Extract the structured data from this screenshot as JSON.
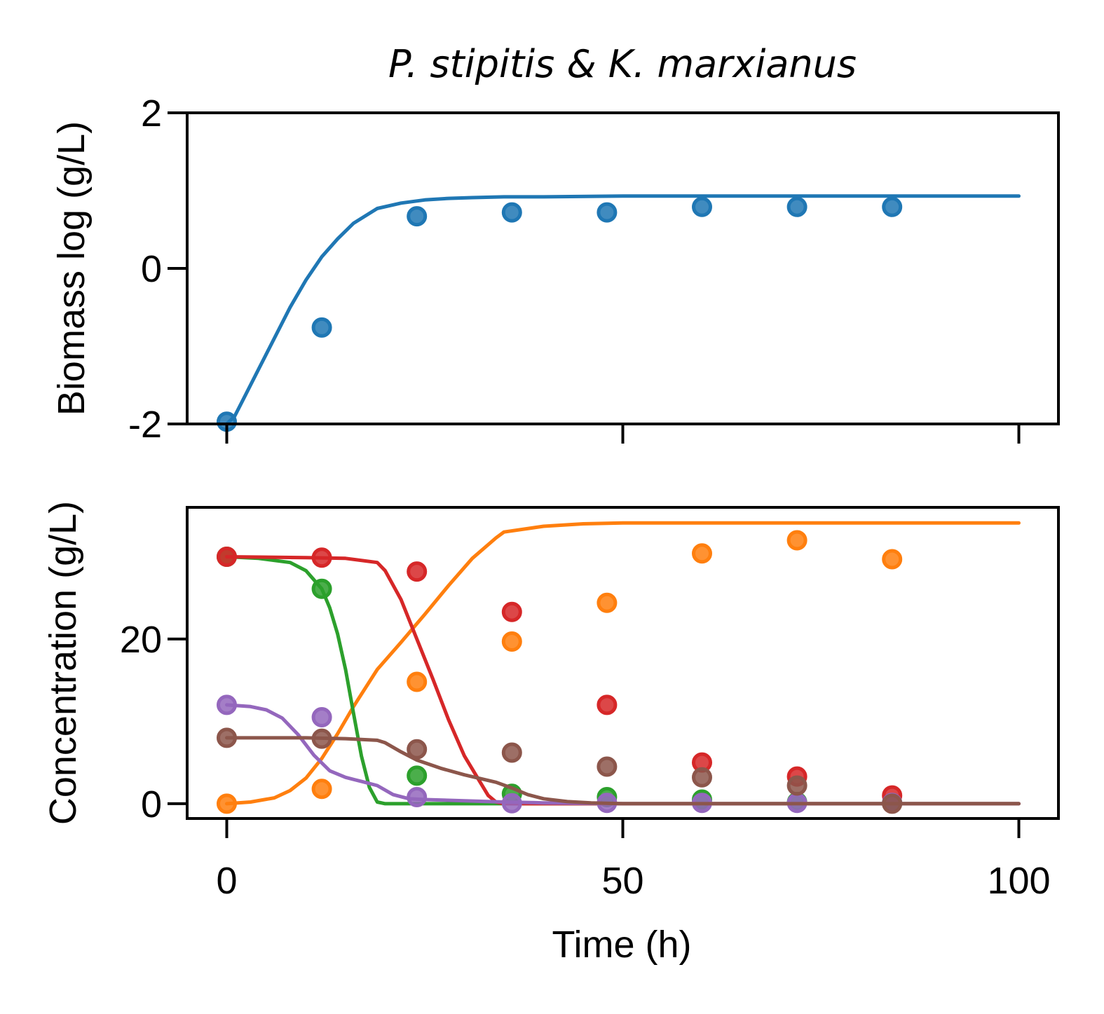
{
  "chart_data": [
    {
      "type": "line",
      "title": "P. stipitis & K. marxianus",
      "ylabel": "Biomass log (g/L)",
      "xlabel": "",
      "xlim": [
        -5,
        105
      ],
      "ylim": [
        -2,
        2
      ],
      "xticks": [
        0,
        50,
        100
      ],
      "yticks": [
        -2,
        0,
        2
      ],
      "ytick_labels": [
        "-2",
        "0",
        "2"
      ],
      "xtick_labels_visible": false,
      "grid": false,
      "series": [
        {
          "color": "#1f77b4",
          "line": {
            "x": [
              0,
              1,
              2,
              4,
              6,
              8,
              10,
              12,
              14,
              16,
              19,
              22,
              25,
              28,
              31,
              35,
              40,
              50,
              60,
              80,
              100
            ],
            "y": [
              -2.0,
              -1.9,
              -1.7,
              -1.3,
              -0.9,
              -0.5,
              -0.15,
              0.15,
              0.38,
              0.58,
              0.77,
              0.84,
              0.88,
              0.9,
              0.91,
              0.92,
              0.92,
              0.93,
              0.93,
              0.93,
              0.93
            ]
          },
          "points": {
            "x": [
              0,
              12,
              24,
              36,
              48,
              60,
              72,
              84
            ],
            "y": [
              -1.97,
              -0.76,
              0.67,
              0.72,
              0.72,
              0.79,
              0.79,
              0.79
            ]
          }
        }
      ]
    },
    {
      "type": "line",
      "title": "",
      "ylabel": "Concentration (g/L)",
      "xlabel": "Time (h)",
      "xlim": [
        -5,
        105
      ],
      "ylim": [
        -1.8,
        36
      ],
      "xticks": [
        0,
        50,
        100
      ],
      "xtick_labels": [
        "0",
        "50",
        "100"
      ],
      "yticks": [
        0,
        20
      ],
      "ytick_labels": [
        "0",
        "20"
      ],
      "grid": false,
      "series": [
        {
          "color": "#ff7f0e",
          "line": {
            "x": [
              0,
              3,
              6,
              8,
              10,
              12,
              14,
              16,
              19,
              22,
              25,
              28,
              31,
              34,
              35,
              40,
              45,
              50,
              60,
              80,
              100
            ],
            "y": [
              0,
              0.2,
              0.7,
              1.6,
              3.1,
              5.5,
              8.5,
              11.8,
              16.3,
              19.6,
              23.0,
              26.5,
              29.8,
              32.3,
              33.0,
              33.7,
              34.0,
              34.1,
              34.1,
              34.1,
              34.1
            ]
          },
          "points": {
            "x": [
              0,
              12,
              24,
              36,
              48,
              60,
              72,
              84
            ],
            "y": [
              0,
              1.8,
              14.8,
              19.7,
              24.4,
              30.4,
              32.0,
              29.7
            ]
          }
        },
        {
          "color": "#2ca02c",
          "line": {
            "x": [
              0,
              4,
              8,
              10,
              12,
              13,
              14,
              15,
              16,
              17,
              18,
              19,
              20,
              22,
              30,
              50,
              100
            ],
            "y": [
              30.0,
              29.8,
              29.3,
              28.3,
              26.1,
              23.8,
              20.6,
              16.3,
              11.0,
              5.8,
              2.0,
              0.2,
              0,
              0,
              0,
              0,
              0
            ]
          },
          "points": {
            "x": [
              0,
              12,
              24,
              36,
              48,
              60,
              72,
              84
            ],
            "y": [
              30.0,
              26.1,
              3.4,
              1.2,
              0.8,
              0.5,
              0.2,
              0.1
            ]
          }
        },
        {
          "color": "#d62728",
          "line": {
            "x": [
              0,
              10,
              15,
              19,
              20,
              22,
              24,
              26,
              28,
              30,
              32,
              33,
              34,
              35,
              40,
              50,
              100
            ],
            "y": [
              30.0,
              29.9,
              29.8,
              29.3,
              28.3,
              24.8,
              20.0,
              15.2,
              10.2,
              5.8,
              2.6,
              1.0,
              0.2,
              0,
              0,
              0,
              0
            ]
          },
          "points": {
            "x": [
              0,
              12,
              24,
              36,
              48,
              60,
              72,
              84
            ],
            "y": [
              30.0,
              29.9,
              28.2,
              23.3,
              12.0,
              5.0,
              3.3,
              1.0
            ]
          }
        },
        {
          "color": "#9467bd",
          "line": {
            "x": [
              0,
              3,
              5,
              7,
              9,
              11,
              13,
              15,
              17,
              19,
              21,
              23,
              25,
              30,
              35,
              40,
              50,
              100
            ],
            "y": [
              12.0,
              11.8,
              11.4,
              10.4,
              8.4,
              5.9,
              4.0,
              3.2,
              2.7,
              2.2,
              1.1,
              0.6,
              0.5,
              0.35,
              0.2,
              0.1,
              0,
              0
            ]
          },
          "points": {
            "x": [
              0,
              12,
              24,
              36,
              48,
              60,
              72,
              84
            ],
            "y": [
              12.0,
              10.5,
              0.8,
              0.05,
              0.1,
              0.1,
              0.1,
              0.1
            ]
          }
        },
        {
          "color": "#8c564b",
          "line": {
            "x": [
              0,
              10,
              15,
              19,
              20,
              22,
              24,
              27,
              30,
              34,
              36,
              38,
              40,
              43,
              46,
              50,
              100
            ],
            "y": [
              8.0,
              8.0,
              7.9,
              7.7,
              7.4,
              6.3,
              5.3,
              4.3,
              3.5,
              2.6,
              1.9,
              1.1,
              0.6,
              0.25,
              0.1,
              0,
              0
            ]
          },
          "points": {
            "x": [
              0,
              12,
              24,
              36,
              48,
              60,
              72,
              84
            ],
            "y": [
              8.0,
              7.9,
              6.6,
              6.2,
              4.5,
              3.2,
              2.2,
              0
            ]
          }
        }
      ]
    }
  ]
}
